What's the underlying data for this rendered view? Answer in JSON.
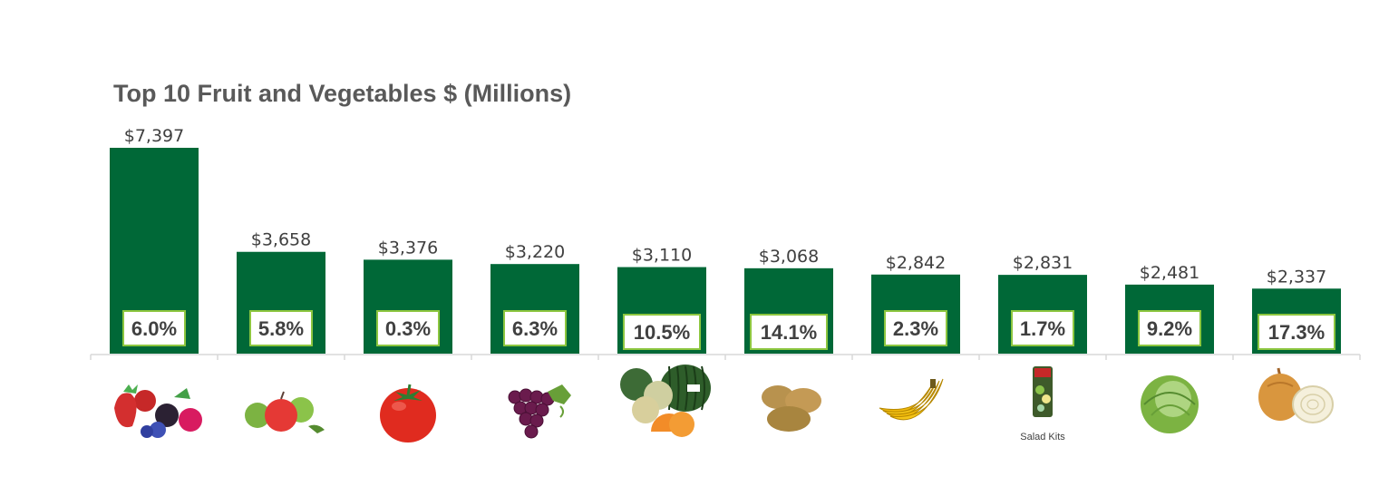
{
  "chart_data": {
    "type": "bar",
    "title": "Top 10 Fruit and Vegetables $ (Millions)",
    "xlabel": "",
    "ylabel": "",
    "ylim": [
      0,
      7397
    ],
    "grid": false,
    "legend": "none",
    "categories": [
      "berries",
      "apples",
      "tomatoes",
      "grapes",
      "melons",
      "potatoes",
      "bananas",
      "salad kits",
      "lettuce",
      "onions"
    ],
    "values": [
      7397,
      3658,
      3376,
      3220,
      3110,
      3068,
      2842,
      2831,
      2481,
      2337
    ],
    "value_labels": [
      "$7,397",
      "$3,658",
      "$3,376",
      "$3,220",
      "$3,110",
      "$3,068",
      "$2,842",
      "$2,831",
      "$2,481",
      "$2,337"
    ],
    "growth_pct": [
      6.0,
      5.8,
      0.3,
      6.3,
      10.5,
      14.1,
      2.3,
      1.7,
      9.2,
      17.3
    ],
    "growth_labels": [
      "6.0%",
      "5.8%",
      "0.3%",
      "6.3%",
      "10.5%",
      "14.1%",
      "2.3%",
      "1.7%",
      "9.2%",
      "17.3%"
    ],
    "category_icons": [
      "berries-icon",
      "apples-icon",
      "tomato-icon",
      "grapes-icon",
      "melons-icon",
      "potatoes-icon",
      "bananas-icon",
      "salad-kit-icon",
      "lettuce-icon",
      "onions-icon"
    ],
    "category_captions": [
      "",
      "",
      "",
      "",
      "",
      "",
      "",
      "Salad Kits",
      "",
      ""
    ]
  },
  "colors": {
    "bar": "#006837",
    "pct_box_border": "#8cc63f",
    "pct_box_fill": "#ffffff",
    "axis": "#d9d9d9"
  }
}
